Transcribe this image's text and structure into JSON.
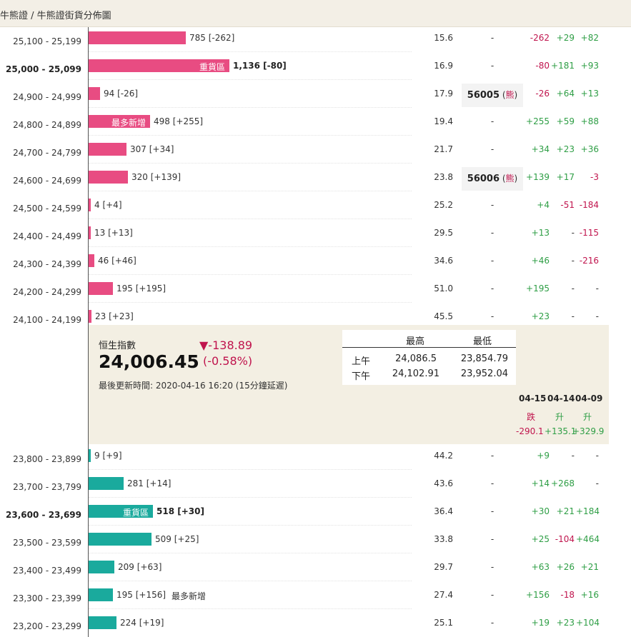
{
  "breadcrumb": "牛熊證 / 牛熊證街貨分佈圖",
  "bear_rows": [
    {
      "range": "25,100 - 25,199",
      "bold": false,
      "value": 785,
      "count_text": "785 [-262]",
      "inner_label": "",
      "after_label": "",
      "ratio": "15.6",
      "code": "-",
      "code_tag": "",
      "d1": "-262",
      "d2": "+29",
      "d3": "+82"
    },
    {
      "range": "25,000 - 25,099",
      "bold": true,
      "value": 1136,
      "count_text": "1,136 [-80]",
      "inner_label": "重貨區",
      "after_label": "",
      "ratio": "16.9",
      "code": "-",
      "code_tag": "",
      "d1": "-80",
      "d2": "+181",
      "d3": "+93"
    },
    {
      "range": "24,900 - 24,999",
      "bold": false,
      "value": 94,
      "count_text": "94 [-26]",
      "inner_label": "",
      "after_label": "",
      "ratio": "17.9",
      "code": "56005",
      "code_tag": "熊",
      "d1": "-26",
      "d2": "+64",
      "d3": "+13"
    },
    {
      "range": "24,800 - 24,899",
      "bold": false,
      "value": 498,
      "count_text": "498 [+255]",
      "inner_label": "最多新增",
      "after_label": "",
      "ratio": "19.4",
      "code": "-",
      "code_tag": "",
      "d1": "+255",
      "d2": "+59",
      "d3": "+88"
    },
    {
      "range": "24,700 - 24,799",
      "bold": false,
      "value": 307,
      "count_text": "307 [+34]",
      "inner_label": "",
      "after_label": "",
      "ratio": "21.7",
      "code": "-",
      "code_tag": "",
      "d1": "+34",
      "d2": "+23",
      "d3": "+36"
    },
    {
      "range": "24,600 - 24,699",
      "bold": false,
      "value": 320,
      "count_text": "320 [+139]",
      "inner_label": "",
      "after_label": "",
      "ratio": "23.8",
      "code": "56006",
      "code_tag": "熊",
      "d1": "+139",
      "d2": "+17",
      "d3": "-3"
    },
    {
      "range": "24,500 - 24,599",
      "bold": false,
      "value": 4,
      "count_text": "4 [+4]",
      "inner_label": "",
      "after_label": "",
      "ratio": "25.2",
      "code": "-",
      "code_tag": "",
      "d1": "+4",
      "d2": "-51",
      "d3": "-184"
    },
    {
      "range": "24,400 - 24,499",
      "bold": false,
      "value": 13,
      "count_text": "13 [+13]",
      "inner_label": "",
      "after_label": "",
      "ratio": "29.5",
      "code": "-",
      "code_tag": "",
      "d1": "+13",
      "d2": "-",
      "d3": "-115"
    },
    {
      "range": "24,300 - 24,399",
      "bold": false,
      "value": 46,
      "count_text": "46 [+46]",
      "inner_label": "",
      "after_label": "",
      "ratio": "34.6",
      "code": "-",
      "code_tag": "",
      "d1": "+46",
      "d2": "-",
      "d3": "-216"
    },
    {
      "range": "24,200 - 24,299",
      "bold": false,
      "value": 195,
      "count_text": "195 [+195]",
      "inner_label": "",
      "after_label": "",
      "ratio": "51.0",
      "code": "-",
      "code_tag": "",
      "d1": "+195",
      "d2": "-",
      "d3": "-"
    },
    {
      "range": "24,100 - 24,199",
      "bold": false,
      "value": 23,
      "count_text": "23 [+23]",
      "inner_label": "",
      "after_label": "",
      "ratio": "45.5",
      "code": "-",
      "code_tag": "",
      "d1": "+23",
      "d2": "-",
      "d3": "-"
    }
  ],
  "bull_rows": [
    {
      "range": "23,800 - 23,899",
      "bold": false,
      "value": 9,
      "count_text": "9 [+9]",
      "inner_label": "",
      "after_label": "",
      "ratio": "44.2",
      "code": "-",
      "code_tag": "",
      "d1": "+9",
      "d2": "-",
      "d3": "-"
    },
    {
      "range": "23,700 - 23,799",
      "bold": false,
      "value": 281,
      "count_text": "281 [+14]",
      "inner_label": "",
      "after_label": "",
      "ratio": "43.6",
      "code": "-",
      "code_tag": "",
      "d1": "+14",
      "d2": "+268",
      "d3": "-"
    },
    {
      "range": "23,600 - 23,699",
      "bold": true,
      "value": 518,
      "count_text": "518 [+30]",
      "inner_label": "重貨區",
      "after_label": "",
      "ratio": "36.4",
      "code": "-",
      "code_tag": "",
      "d1": "+30",
      "d2": "+21",
      "d3": "+184"
    },
    {
      "range": "23,500 - 23,599",
      "bold": false,
      "value": 509,
      "count_text": "509 [+25]",
      "inner_label": "",
      "after_label": "",
      "ratio": "33.8",
      "code": "-",
      "code_tag": "",
      "d1": "+25",
      "d2": "-104",
      "d3": "+464"
    },
    {
      "range": "23,400 - 23,499",
      "bold": false,
      "value": 209,
      "count_text": "209 [+63]",
      "inner_label": "",
      "after_label": "",
      "ratio": "29.7",
      "code": "-",
      "code_tag": "",
      "d1": "+63",
      "d2": "+26",
      "d3": "+21"
    },
    {
      "range": "23,300 - 23,399",
      "bold": false,
      "value": 195,
      "count_text": "195 [+156]",
      "inner_label": "",
      "after_label": "最多新增",
      "ratio": "27.4",
      "code": "-",
      "code_tag": "",
      "d1": "+156",
      "d2": "-18",
      "d3": "+16"
    },
    {
      "range": "23,200 - 23,299",
      "bold": false,
      "value": 224,
      "count_text": "224 [+19]",
      "inner_label": "",
      "after_label": "",
      "ratio": "25.1",
      "code": "-",
      "code_tag": "",
      "d1": "+19",
      "d2": "+23",
      "d3": "+104"
    }
  ],
  "index": {
    "name": "恒生指數",
    "value": "24,006.45",
    "change": "▼-138.89",
    "change_pct": "(-0.58%)",
    "updated": "最後更新時間: 2020-04-16 16:20 (15分鐘延遲)",
    "hl_header_high": "最高",
    "hl_header_low": "最低",
    "am_label": "上午",
    "am_high": "24,086.5",
    "am_low": "23,854.79",
    "pm_label": "下午",
    "pm_high": "24,102.91",
    "pm_low": "23,952.04"
  },
  "history": [
    {
      "date": "04-15",
      "word": "跌",
      "value": "-290.1",
      "dir": "neg"
    },
    {
      "date": "04-14",
      "word": "升",
      "value": "+135.1",
      "dir": "pos"
    },
    {
      "date": "04-09",
      "word": "升",
      "value": "+329.9",
      "dir": "pos"
    }
  ],
  "colors": {
    "bear": "#e84c82",
    "bull": "#1aaa9d",
    "up": "#2e9e45",
    "down": "#c0144d"
  }
}
